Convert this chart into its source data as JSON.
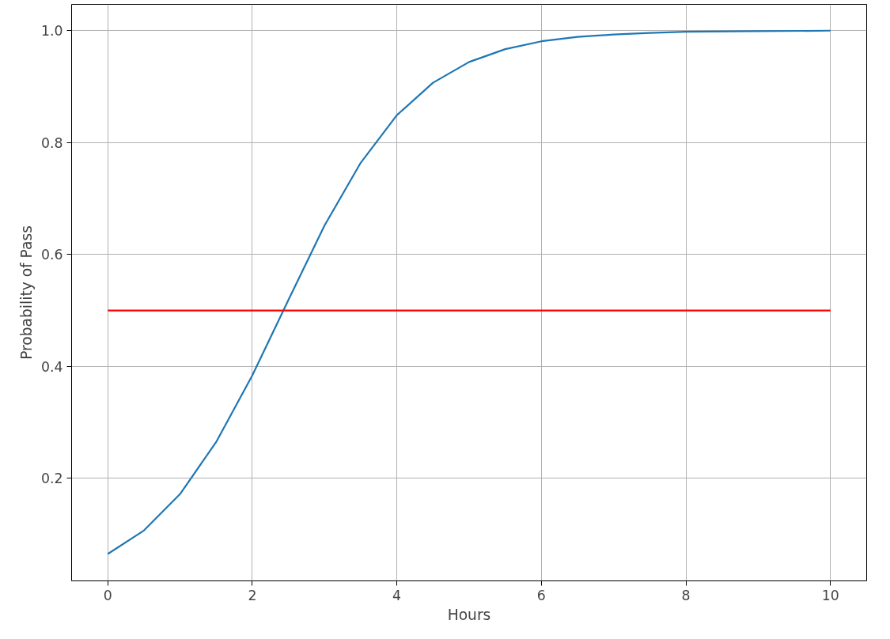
{
  "chart_data": {
    "type": "line",
    "xlabel": "Hours",
    "ylabel": "Probability of Pass",
    "xlim": [
      -0.5,
      10.5
    ],
    "ylim": [
      0.017,
      1.047
    ],
    "xticks": [
      0,
      2,
      4,
      6,
      8,
      10
    ],
    "yticks": [
      0.2,
      0.4,
      0.6,
      0.8,
      {
        "value": 1,
        "label": "1.0"
      }
    ],
    "grid": true,
    "series": [
      {
        "color": "#1f77b4",
        "x": [
          0,
          0.5,
          1,
          1.5,
          2,
          2.5,
          3,
          3.5,
          4,
          4.5,
          5,
          5.5,
          6,
          6.5,
          7,
          7.5,
          8,
          9,
          10
        ],
        "values": [
          0.065,
          0.107,
          0.172,
          0.265,
          0.384,
          0.519,
          0.652,
          0.764,
          0.849,
          0.907,
          0.944,
          0.967,
          0.981,
          0.989,
          0.993,
          0.996,
          0.998,
          0.999,
          1.0
        ]
      },
      {
        "color": "#ff0000",
        "x": [
          0,
          10
        ],
        "values": [
          0.5,
          0.5
        ]
      }
    ]
  }
}
